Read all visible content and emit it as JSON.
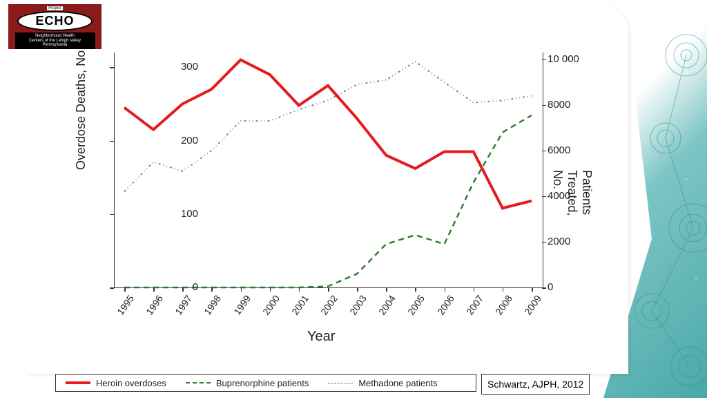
{
  "logo": {
    "project": "Project",
    "echo": "ECHO",
    "sub": "Neighborhood Health\nCenters of the Lehigh Valley\nPennsylvania"
  },
  "citation": "Schwartz, AJPH, 2012",
  "chart": {
    "type": "line-dual-axis",
    "xaxis": {
      "label": "Year",
      "ticks": [
        "1995",
        "1996",
        "1997",
        "1998",
        "1999",
        "2000",
        "2001",
        "2002",
        "2003",
        "2004",
        "2005",
        "2006",
        "2007",
        "2008",
        "2009"
      ],
      "fontsize": 14
    },
    "yaxis_left": {
      "label": "Overdose Deaths, No.",
      "ticks": [
        0,
        100,
        200,
        300
      ],
      "lim": [
        0,
        320
      ],
      "fontsize": 15
    },
    "yaxis_right": {
      "label": "Patients Treated, No.",
      "ticks": [
        0,
        2000,
        4000,
        6000,
        8000,
        10000
      ],
      "tick_labels": [
        "0",
        "2000",
        "4000",
        "6000",
        "8000",
        "10 000"
      ],
      "lim": [
        0,
        10300
      ],
      "fontsize": 15
    },
    "series": [
      {
        "name": "Heroin overdoses",
        "axis": "left",
        "color": "#e41a1c",
        "width": 4,
        "dash": "",
        "y": [
          245,
          215,
          250,
          270,
          310,
          290,
          248,
          275,
          230,
          180,
          162,
          185,
          185,
          108,
          118
        ]
      },
      {
        "name": "Buprenorphine patients",
        "axis": "right",
        "color": "#2e7d32",
        "width": 2.5,
        "dash": "8,6",
        "y": [
          0,
          0,
          0,
          0,
          0,
          0,
          0,
          50,
          600,
          1900,
          2300,
          1900,
          4600,
          6800,
          7550
        ]
      },
      {
        "name": "Methadone patients",
        "axis": "right",
        "color": "#607d9c",
        "width": 1.8,
        "dash": "3,4,1,4,1,4",
        "y": [
          4200,
          5500,
          5100,
          6000,
          7300,
          7300,
          7800,
          8200,
          8900,
          9100,
          9900,
          9000,
          8100,
          8200,
          8400
        ]
      }
    ],
    "background": "#ffffff",
    "label_fontsize": 18
  }
}
